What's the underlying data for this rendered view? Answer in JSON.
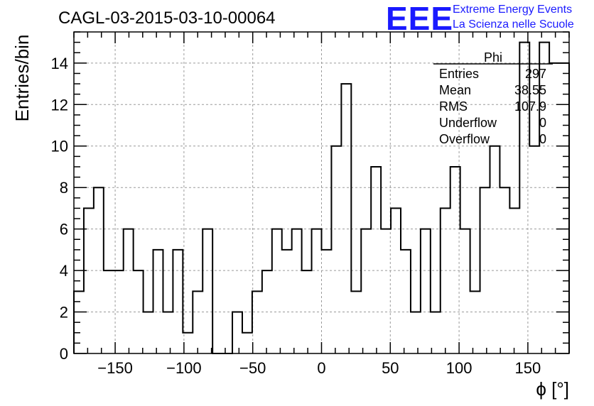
{
  "chart_data": {
    "type": "bar",
    "title": "CAGL-03-2015-03-10-00064",
    "xlabel": "ϕ [°]",
    "ylabel": "Entries/bin",
    "xlim": [
      -180,
      180
    ],
    "ylim": [
      0,
      15.5
    ],
    "x_ticks": [
      -150,
      -100,
      -50,
      0,
      50,
      100,
      150
    ],
    "y_ticks": [
      0,
      2,
      4,
      6,
      8,
      10,
      12,
      14
    ],
    "grid": true,
    "bin_width": 7.2,
    "bin_start": -180,
    "values": [
      3,
      7,
      8,
      4,
      4,
      6,
      4,
      2,
      5,
      2,
      5,
      1,
      3,
      6,
      0,
      0,
      2,
      1,
      3,
      4,
      6,
      5,
      6,
      4,
      6,
      5,
      10,
      13,
      3,
      6,
      9,
      6,
      7,
      5,
      2,
      6,
      2,
      7,
      9,
      6,
      3,
      8,
      10,
      8,
      7,
      15,
      10,
      15,
      14,
      14
    ],
    "stats": {
      "name": "Phi",
      "rows": [
        {
          "label": "Entries",
          "value": "297"
        },
        {
          "label": "Mean",
          "value": "38.55"
        },
        {
          "label": "RMS",
          "value": "107.9"
        },
        {
          "label": "Underflow",
          "value": "0"
        },
        {
          "label": "Overflow",
          "value": "0"
        }
      ]
    }
  },
  "logo": {
    "mark": "EEE",
    "line1": "Extreme Energy Events",
    "line2": "La Scienza nelle Scuole",
    "color": "#1a1aff"
  }
}
